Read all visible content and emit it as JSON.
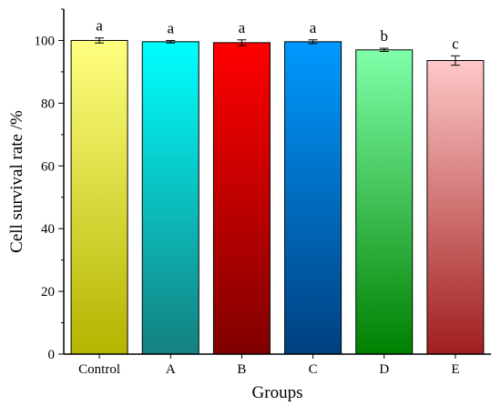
{
  "chart_data": {
    "type": "bar",
    "xlabel": "Groups",
    "ylabel": "Cell survival rate /%",
    "ylim": [
      0,
      110
    ],
    "yticks": [
      0,
      20,
      40,
      60,
      80,
      100
    ],
    "grid": false,
    "categories": [
      "Control",
      "A",
      "B",
      "C",
      "D",
      "E"
    ],
    "values": [
      100.0,
      99.6,
      99.3,
      99.6,
      97.0,
      93.6
    ],
    "errors": [
      0.8,
      0.4,
      0.9,
      0.6,
      0.5,
      1.5
    ],
    "significance": [
      "a",
      "a",
      "a",
      "a",
      "b",
      "c"
    ],
    "colors": [
      {
        "top": "#ffff80",
        "bottom": "#b4b400"
      },
      {
        "top": "#00ffff",
        "bottom": "#158080"
      },
      {
        "top": "#ff0000",
        "bottom": "#800000"
      },
      {
        "top": "#0099ff",
        "bottom": "#004080"
      },
      {
        "top": "#80ffaa",
        "bottom": "#008000"
      },
      {
        "top": "#ffc8c8",
        "bottom": "#a01e1e"
      }
    ]
  }
}
